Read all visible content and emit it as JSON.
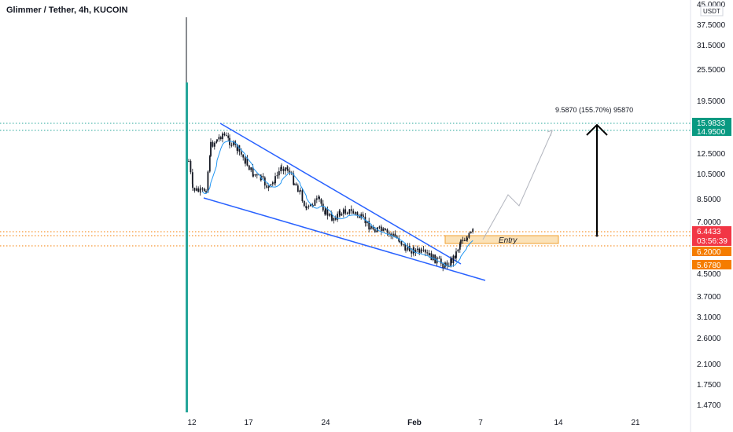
{
  "header": {
    "title": "Glimmer / Tether, 4h, KUCOIN"
  },
  "colors": {
    "up": "#26a69a",
    "down": "#ef5350",
    "candle": "#131722",
    "wedge": "#2962ff",
    "ma": "#2196f3",
    "target_line": "#26a69a",
    "last_price": "#f23645",
    "orange": "#f57c00",
    "green_badge": "#089981",
    "entry_fill": "#fbe2b8",
    "arrow": "#000000",
    "projection": "#b2b5be"
  },
  "chart_data": {
    "type": "candlestick",
    "scale": "log",
    "currency": "USDT",
    "y_ticks": [
      "45.0000",
      "37.5000",
      "31.5000",
      "25.5000",
      "19.5000",
      "12.5000",
      "10.5000",
      "8.5000",
      "7.0000",
      "4.5000",
      "3.7000",
      "3.1000",
      "2.6000",
      "2.1000",
      "1.7500",
      "1.4700"
    ],
    "x_ticks": [
      "12",
      "17",
      "24",
      "Feb",
      "7",
      "14",
      "21"
    ],
    "price_labels": [
      {
        "value": "15.9833",
        "color": "green"
      },
      {
        "value": "14.9500",
        "color": "green"
      },
      {
        "value": "6.4433",
        "countdown": "03:56:39",
        "color": "red"
      },
      {
        "value": "6.2000",
        "color": "orange"
      },
      {
        "value": "5.6780",
        "color": "orange"
      }
    ],
    "target_label": "9.5870 (155.70%) 95870",
    "entry_label": "Entry",
    "series": [
      {
        "name": "Glimmer / Tether",
        "type": "ohlc",
        "approx": true
      }
    ]
  }
}
